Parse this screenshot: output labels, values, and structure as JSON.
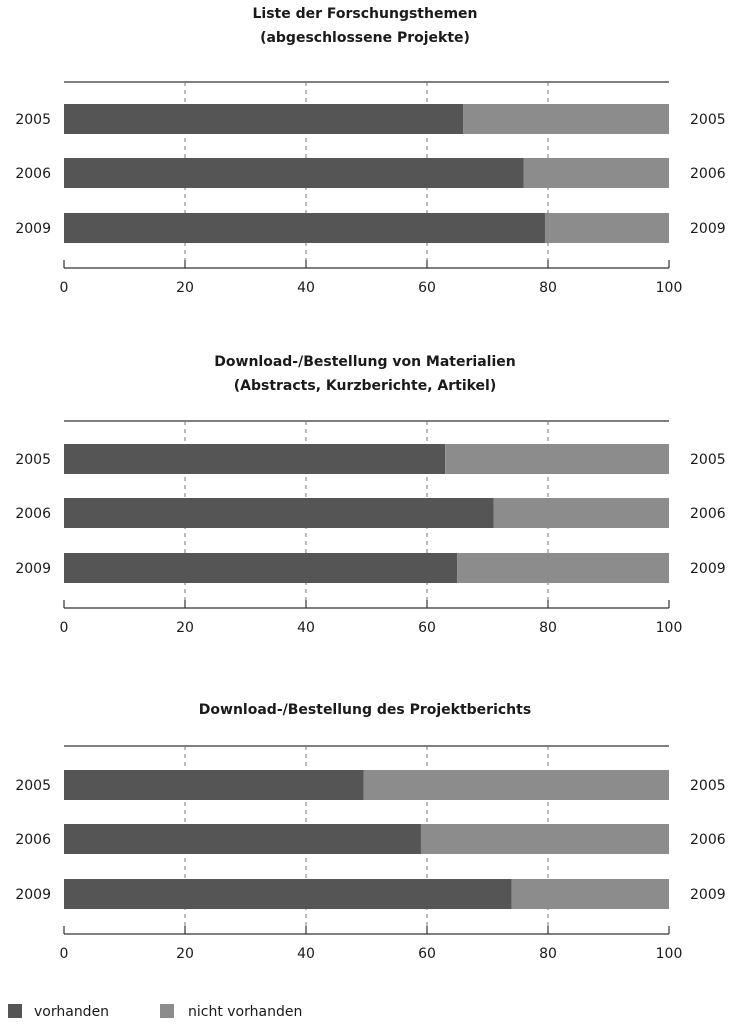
{
  "chart_data": [
    {
      "type": "bar",
      "stacked": true,
      "orientation": "horizontal",
      "title": "Liste der Forschungsthemen",
      "subtitle": "(abgeschlossene Projekte)",
      "categories": [
        "2005",
        "2006",
        "2009"
      ],
      "series": [
        {
          "name": "vorhanden",
          "values": [
            66,
            76,
            79.5
          ]
        },
        {
          "name": "nicht vorhanden",
          "values": [
            34,
            24,
            20.5
          ]
        }
      ],
      "xlim": [
        0,
        100
      ],
      "xticks": [
        "0",
        "20",
        "40",
        "60",
        "80",
        "100"
      ],
      "grid": "dashed vertical at 20, 40, 60, 80"
    },
    {
      "type": "bar",
      "stacked": true,
      "orientation": "horizontal",
      "title": "Download-/Bestellung von Materialien",
      "subtitle": "(Abstracts, Kurzberichte, Artikel)",
      "categories": [
        "2005",
        "2006",
        "2009"
      ],
      "series": [
        {
          "name": "vorhanden",
          "values": [
            63,
            71,
            65
          ]
        },
        {
          "name": "nicht vorhanden",
          "values": [
            37,
            29,
            35
          ]
        }
      ],
      "xlim": [
        0,
        100
      ],
      "xticks": [
        "0",
        "20",
        "40",
        "60",
        "80",
        "100"
      ],
      "grid": "dashed vertical at 20, 40, 60, 80"
    },
    {
      "type": "bar",
      "stacked": true,
      "orientation": "horizontal",
      "title": "Download-/Bestellung des Projektberichts",
      "subtitle": "",
      "categories": [
        "2005",
        "2006",
        "2009"
      ],
      "series": [
        {
          "name": "vorhanden",
          "values": [
            49.5,
            59,
            74
          ]
        },
        {
          "name": "nicht vorhanden",
          "values": [
            50.5,
            41,
            26
          ]
        }
      ],
      "xlim": [
        0,
        100
      ],
      "xticks": [
        "0",
        "20",
        "40",
        "60",
        "80",
        "100"
      ],
      "grid": "dashed vertical at 20, 40, 60, 80"
    }
  ],
  "legend": {
    "placement": "bottom-left",
    "items": [
      {
        "label": "vorhanden",
        "color": "#555555"
      },
      {
        "label": "nicht vorhanden",
        "color": "#8c8c8c"
      }
    ]
  },
  "colors": {
    "vorhanden": "#555555",
    "nicht_vorhanden": "#8c8c8c",
    "axis": "#333333",
    "grid": "#777777"
  }
}
